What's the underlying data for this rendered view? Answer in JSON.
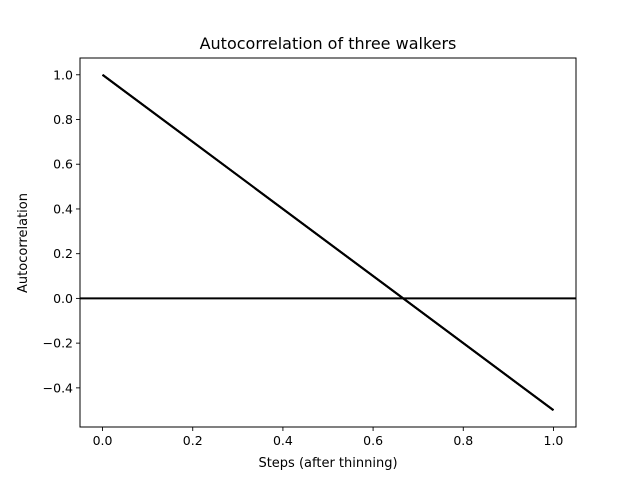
{
  "chart_data": {
    "type": "line",
    "title": "Autocorrelation of three walkers",
    "xlabel": "Steps (after thinning)",
    "ylabel": "Autocorrelation",
    "xlim": [
      -0.05,
      1.05
    ],
    "ylim": [
      -0.575,
      1.075
    ],
    "xticks": [
      0.0,
      0.2,
      0.4,
      0.6,
      0.8,
      1.0
    ],
    "xtick_labels": [
      "0.0",
      "0.2",
      "0.4",
      "0.6",
      "0.8",
      "1.0"
    ],
    "yticks": [
      -0.4,
      -0.2,
      0.0,
      0.2,
      0.4,
      0.6,
      0.8,
      1.0
    ],
    "ytick_labels": [
      "−0.4",
      "−0.2",
      "0.0",
      "0.2",
      "0.4",
      "0.6",
      "0.8",
      "1.0"
    ],
    "grid": false,
    "legend": "none",
    "series": [
      {
        "x": [
          0.0,
          1.0
        ],
        "y": [
          1.0,
          -0.5
        ],
        "color": "#000000"
      },
      {
        "x": [
          0.0,
          1.0
        ],
        "y": [
          1.0,
          -0.5
        ],
        "color": "#000000"
      },
      {
        "x": [
          0.0,
          1.0
        ],
        "y": [
          1.0,
          -0.5
        ],
        "color": "#000000"
      }
    ],
    "reference_lines": [
      {
        "orientation": "horizontal",
        "y": 0.0,
        "color": "#000000"
      }
    ]
  }
}
